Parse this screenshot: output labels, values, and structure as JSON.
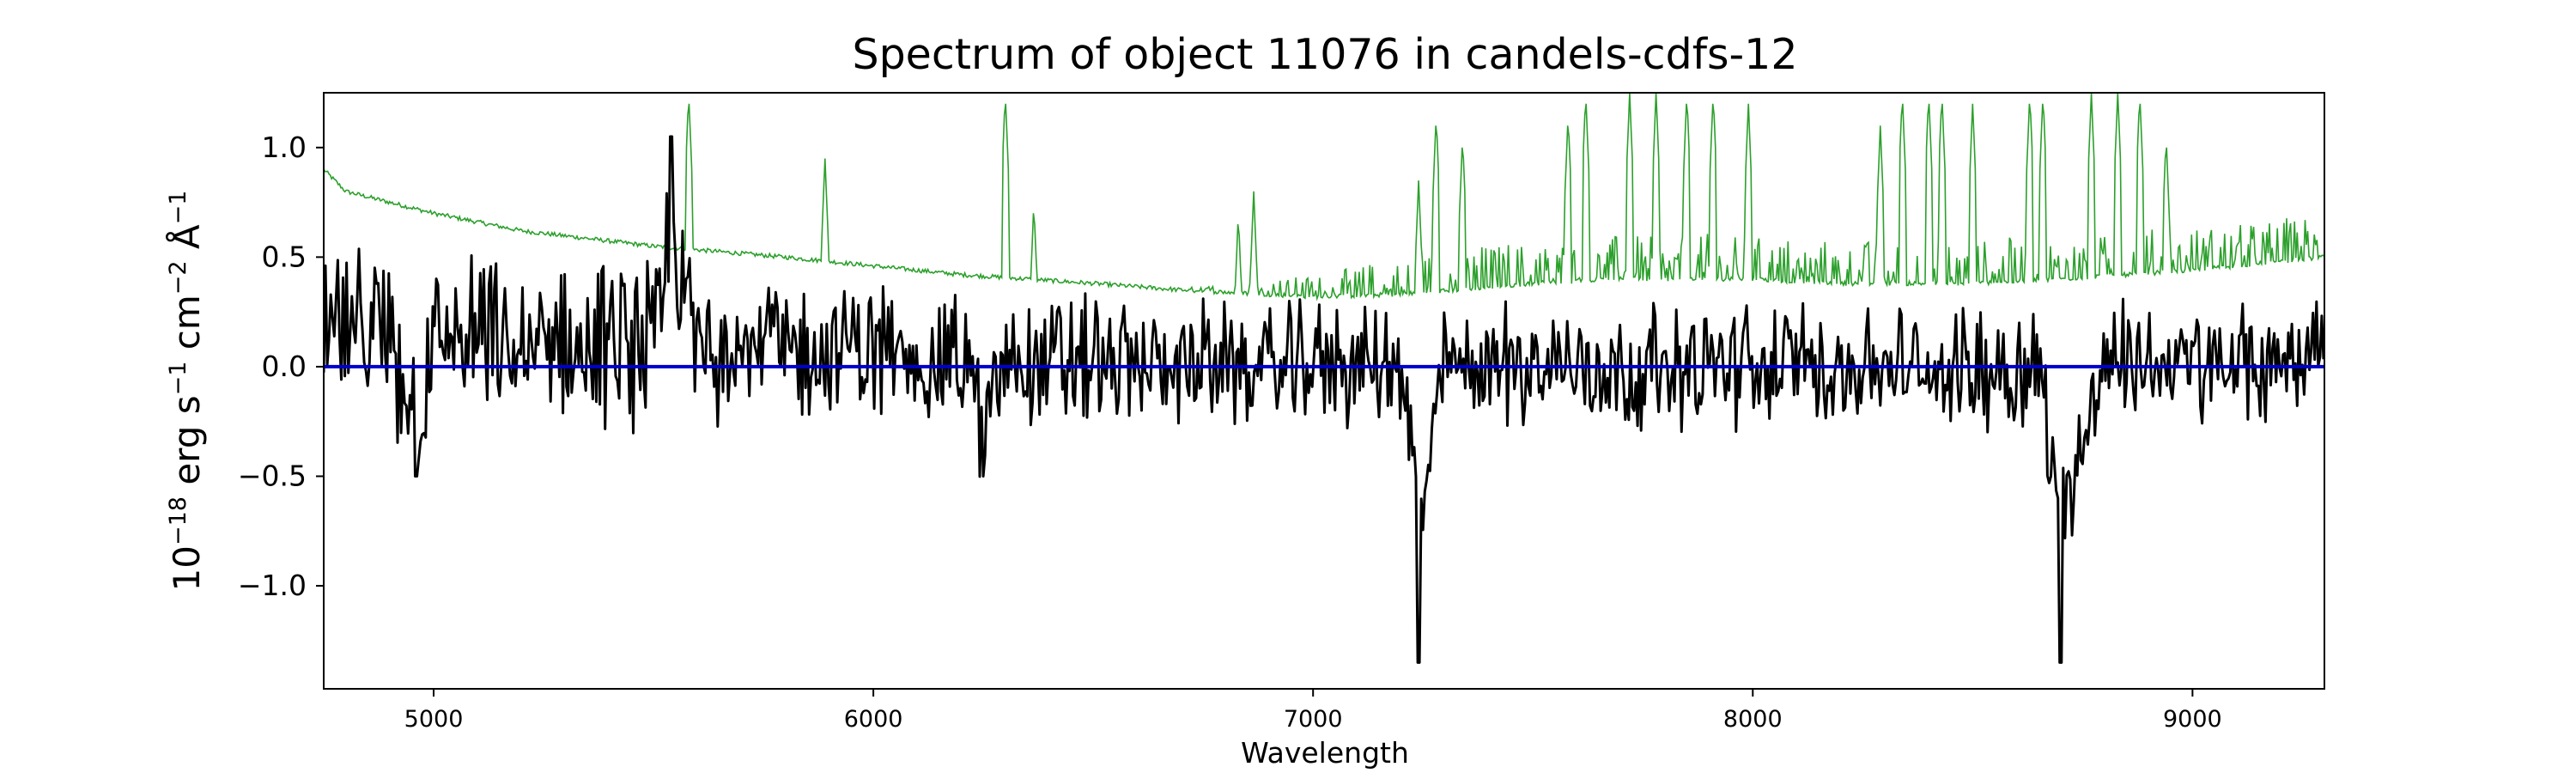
{
  "chart_data": {
    "type": "line",
    "title": "Spectrum of object 11076 in candels-cdfs-12",
    "xlabel": "Wavelength",
    "ylabel_parts": [
      "10",
      "−18",
      " erg s",
      "−1",
      " cm",
      "−2",
      " Å",
      "−1"
    ],
    "xlim": [
      4750,
      9300
    ],
    "ylim": [
      -1.47,
      1.25
    ],
    "xticks": [
      5000,
      6000,
      7000,
      8000,
      9000
    ],
    "xtick_labels": [
      "5000",
      "6000",
      "7000",
      "8000",
      "9000"
    ],
    "yticks": [
      1.0,
      0.5,
      0.0,
      -0.5,
      -1.0
    ],
    "ytick_labels": [
      "1.0",
      "0.5",
      "0.0",
      "−0.5",
      "−1.0"
    ],
    "grid": false,
    "series": [
      {
        "role": "noise",
        "color": "#2ca02c",
        "x": [
          4750,
          4800,
          5000,
          5200,
          5500,
          5800,
          6000,
          6200,
          6500,
          6700,
          7000,
          7200,
          7500,
          7700,
          8000,
          8200,
          8500,
          8700,
          9000,
          9300
        ],
        "y": [
          0.9,
          0.8,
          0.7,
          0.62,
          0.55,
          0.5,
          0.46,
          0.42,
          0.38,
          0.35,
          0.32,
          0.33,
          0.38,
          0.4,
          0.4,
          0.38,
          0.38,
          0.4,
          0.44,
          0.5
        ],
        "spikes": [
          {
            "x": 5580,
            "y": 1.25
          },
          {
            "x": 5890,
            "y": 0.95
          },
          {
            "x": 6300,
            "y": 1.25
          },
          {
            "x": 6365,
            "y": 0.75
          },
          {
            "x": 6830,
            "y": 0.7
          },
          {
            "x": 6865,
            "y": 0.8
          },
          {
            "x": 7240,
            "y": 0.85
          },
          {
            "x": 7280,
            "y": 1.15
          },
          {
            "x": 7340,
            "y": 1.05
          },
          {
            "x": 7580,
            "y": 1.15
          },
          {
            "x": 7620,
            "y": 1.25
          },
          {
            "x": 7720,
            "y": 1.25
          },
          {
            "x": 7780,
            "y": 1.25
          },
          {
            "x": 7850,
            "y": 1.25
          },
          {
            "x": 7910,
            "y": 1.25
          },
          {
            "x": 7990,
            "y": 1.2
          },
          {
            "x": 8290,
            "y": 1.1
          },
          {
            "x": 8340,
            "y": 1.25
          },
          {
            "x": 8400,
            "y": 1.25
          },
          {
            "x": 8430,
            "y": 1.25
          },
          {
            "x": 8500,
            "y": 1.2
          },
          {
            "x": 8630,
            "y": 1.25
          },
          {
            "x": 8660,
            "y": 1.25
          },
          {
            "x": 8770,
            "y": 1.25
          },
          {
            "x": 8830,
            "y": 1.25
          },
          {
            "x": 8880,
            "y": 1.25
          },
          {
            "x": 8940,
            "y": 1.05
          }
        ]
      },
      {
        "role": "flux",
        "color": "#000000",
        "x": [
          4750,
          4800,
          4900,
          4960,
          5000,
          5100,
          5200,
          5300,
          5400,
          5500,
          5540,
          5600,
          5700,
          5800,
          5900,
          6000,
          6100,
          6200,
          6250,
          6300,
          6400,
          6500,
          6600,
          6700,
          6800,
          6900,
          7000,
          7100,
          7200,
          7240,
          7300,
          7400,
          7500,
          7600,
          7700,
          7800,
          7900,
          8000,
          8100,
          8200,
          8300,
          8400,
          8500,
          8600,
          8650,
          8700,
          8800,
          8900,
          9000,
          9100,
          9200,
          9300
        ],
        "y": [
          0.4,
          0.3,
          0.2,
          -0.5,
          0.2,
          0.25,
          0.1,
          0.2,
          0.15,
          0.2,
          1.05,
          0.2,
          0.3,
          0.15,
          0.1,
          0.2,
          0.05,
          0.1,
          -0.5,
          0.1,
          0.05,
          0.05,
          0.0,
          0.05,
          0.0,
          0.0,
          0.05,
          0.0,
          0.0,
          -1.35,
          0.0,
          0.05,
          0.0,
          0.05,
          -0.05,
          0.0,
          0.0,
          0.0,
          0.05,
          0.0,
          0.0,
          -0.05,
          0.0,
          0.0,
          0.0,
          -1.35,
          0.05,
          0.05,
          0.0,
          0.0,
          0.0,
          0.3
        ]
      },
      {
        "role": "zero",
        "color": "#0000cc",
        "x": [
          4750,
          9300
        ],
        "y": [
          0.0,
          0.0
        ]
      }
    ]
  }
}
